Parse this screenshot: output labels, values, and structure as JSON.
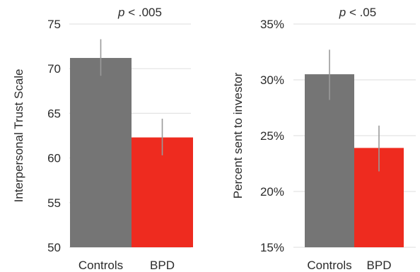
{
  "chart_data": [
    {
      "type": "bar",
      "title_italic": "p",
      "title_rest": "< .005",
      "ylabel": "Interpersonal Trust Scale",
      "categories": [
        "Controls",
        "BPD"
      ],
      "values": [
        71.2,
        62.3
      ],
      "error_low": [
        69.2,
        60.3
      ],
      "error_high": [
        73.3,
        64.4
      ],
      "colors": [
        "#757575",
        "#ee2b1f"
      ],
      "ylim": [
        50,
        75
      ],
      "ticks": [
        50,
        55,
        60,
        65,
        70,
        75
      ],
      "tick_labels": [
        "50",
        "55",
        "60",
        "65",
        "70",
        "75"
      ],
      "grid": true
    },
    {
      "type": "bar",
      "title_italic": "p",
      "title_rest": "< .05",
      "ylabel": "Percent sent to investor",
      "categories": [
        "Controls",
        "BPD"
      ],
      "values": [
        30.5,
        23.9
      ],
      "error_low": [
        28.2,
        21.8
      ],
      "error_high": [
        32.7,
        25.9
      ],
      "colors": [
        "#757575",
        "#ee2b1f"
      ],
      "ylim": [
        15,
        35
      ],
      "ticks": [
        15,
        20,
        25,
        30,
        35
      ],
      "tick_labels": [
        "15%",
        "20%",
        "25%",
        "30%",
        "35%"
      ],
      "grid": true
    }
  ]
}
